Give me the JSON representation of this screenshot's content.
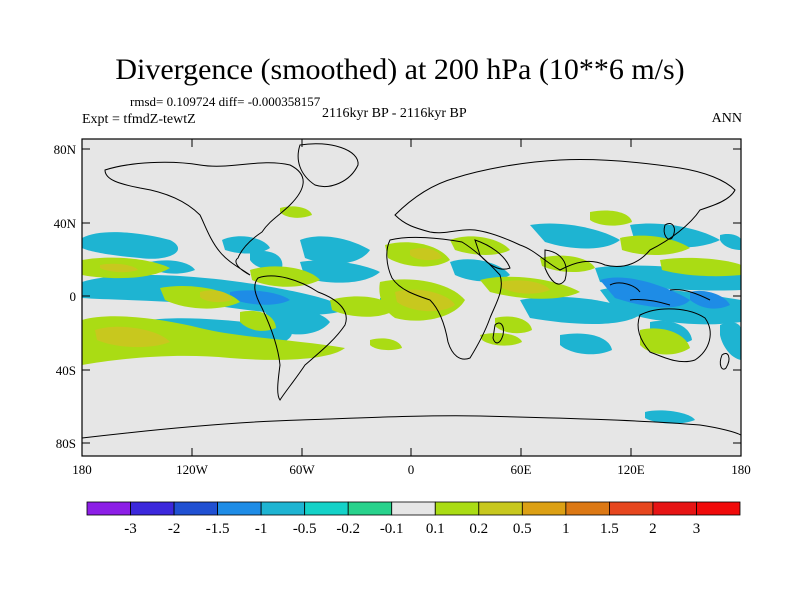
{
  "title": "Divergence (smoothed) at 200 hPa (10**6 m/s)",
  "stats": {
    "rmsd_label": "rmsd=",
    "rmsd_value": "0.109724",
    "diff_label": "diff=",
    "diff_value": "-0.000358157",
    "text": "rmsd= 0.109724 diff= -0.000358157"
  },
  "experiment": "Expt = tfmdZ-tewtZ",
  "period": "2116kyr BP - 2116kyr BP",
  "season": "ANN",
  "axes": {
    "y_ticks": [
      "80N",
      "40N",
      "0",
      "40S",
      "80S"
    ],
    "x_ticks": [
      "180",
      "120W",
      "60W",
      "0",
      "60E",
      "120E",
      "180"
    ]
  },
  "colorbar": {
    "labels": [
      "-3",
      "-2",
      "-1.5",
      "-1",
      "-0.5",
      "-0.2",
      "-0.1",
      "0.1",
      "0.2",
      "0.5",
      "1",
      "1.5",
      "2",
      "3"
    ],
    "colors": [
      "#8c1ee6",
      "#3c28dc",
      "#2050d2",
      "#1e8ce6",
      "#1eb4d2",
      "#14d2c8",
      "#28d28c",
      "#e6e6e6",
      "#aadc14",
      "#c8c81e",
      "#dca014",
      "#dc7814",
      "#e6461e",
      "#e61414",
      "#f00a0a"
    ]
  },
  "legend_colors": {
    "land_outline": "#000000",
    "background": "#e6e6e6"
  }
}
